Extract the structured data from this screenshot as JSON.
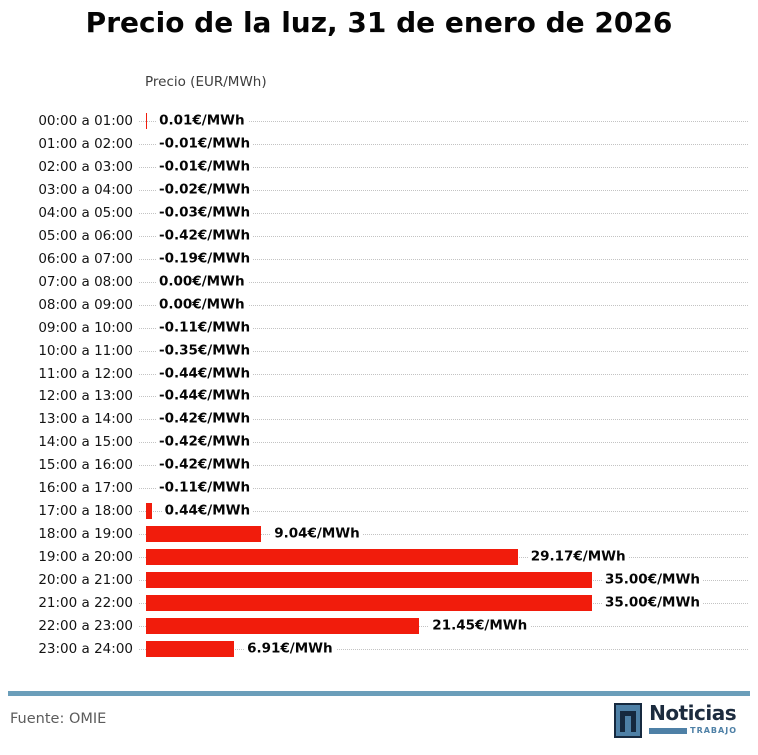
{
  "title": "Precio de la luz, 31 de enero de 2026",
  "axis_label": "Precio (EUR/MWh)",
  "source": "Fuente: OMIE",
  "logo": {
    "name": "Noticias",
    "subtitle": "TRABAJO",
    "icon": "noticias-n-icon"
  },
  "colors": {
    "bar": "#f11c0c",
    "divider": "#6b9eba",
    "logo_navy": "#16293f",
    "logo_blue": "#4e80a6",
    "grid": "#c3c3c3"
  },
  "chart_data": {
    "type": "bar",
    "orientation": "horizontal",
    "title": "Precio de la luz, 31 de enero de 2026",
    "xlabel": "Precio (EUR/MWh)",
    "ylabel": "",
    "xlim": [
      0,
      35
    ],
    "grid": "dotted-horizontal",
    "legend": "none",
    "unit_suffix": "€/MWh",
    "categories": [
      "00:00 a 01:00",
      "01:00 a 02:00",
      "02:00 a 03:00",
      "03:00 a 04:00",
      "04:00 a 05:00",
      "05:00 a 06:00",
      "06:00 a 07:00",
      "07:00 a 08:00",
      "08:00 a 09:00",
      "09:00 a 10:00",
      "10:00 a 11:00",
      "11:00 a 12:00",
      "12:00 a 13:00",
      "13:00 a 14:00",
      "14:00 a 15:00",
      "15:00 a 16:00",
      "16:00 a 17:00",
      "17:00 a 18:00",
      "18:00 a 19:00",
      "19:00 a 20:00",
      "20:00 a 21:00",
      "21:00 a 22:00",
      "22:00 a 23:00",
      "23:00 a 24:00"
    ],
    "values": [
      0.01,
      -0.01,
      -0.01,
      -0.02,
      -0.03,
      -0.42,
      -0.19,
      0.0,
      0.0,
      -0.11,
      -0.35,
      -0.44,
      -0.44,
      -0.42,
      -0.42,
      -0.42,
      -0.11,
      0.44,
      9.04,
      29.17,
      35.0,
      35.0,
      21.45,
      6.91
    ],
    "labels": [
      "0.01€/MWh",
      "-0.01€/MWh",
      "-0.01€/MWh",
      "-0.02€/MWh",
      "-0.03€/MWh",
      "-0.42€/MWh",
      "-0.19€/MWh",
      "0.00€/MWh",
      "0.00€/MWh",
      "-0.11€/MWh",
      "-0.35€/MWh",
      "-0.44€/MWh",
      "-0.44€/MWh",
      "-0.42€/MWh",
      "-0.42€/MWh",
      "-0.42€/MWh",
      "-0.11€/MWh",
      "0.44€/MWh",
      "9.04€/MWh",
      "29.17€/MWh",
      "35.00€/MWh",
      "35.00€/MWh",
      "21.45€/MWh",
      "6.91€/MWh"
    ]
  }
}
